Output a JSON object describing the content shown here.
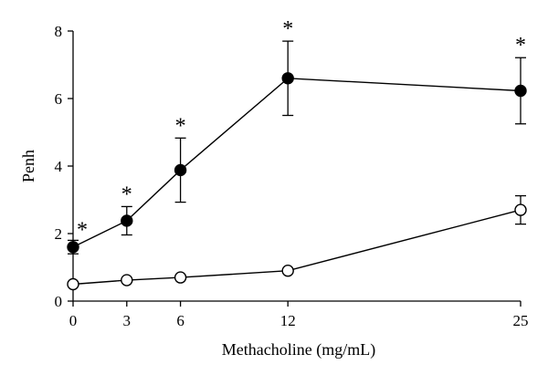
{
  "chart_data": {
    "type": "line",
    "x": [
      0,
      3,
      6,
      12,
      25
    ],
    "x_ticks": [
      "0",
      "3",
      "6",
      "12",
      "25"
    ],
    "y_ticks": [
      "0",
      "2",
      "4",
      "6",
      "8"
    ],
    "xlim": [
      0,
      25
    ],
    "ylim": [
      0,
      8
    ],
    "xlabel": "Methacholine (mg/mL)",
    "ylabel": "Penh",
    "grid": false,
    "legend": "none",
    "series": [
      {
        "marker": "filled-circle",
        "color": "#000000",
        "values": [
          1.6,
          2.38,
          3.88,
          6.6,
          6.23
        ],
        "error": [
          0.2,
          0.42,
          0.95,
          1.1,
          0.98
        ],
        "significance": [
          "*",
          "*",
          "*",
          "*",
          "*"
        ]
      },
      {
        "marker": "open-circle",
        "color": "#000000",
        "values": [
          0.5,
          0.62,
          0.7,
          0.9,
          2.7
        ],
        "error": [
          0,
          0,
          0,
          0,
          0.42
        ],
        "significance": [
          "",
          "",
          "",
          "",
          ""
        ]
      }
    ]
  }
}
